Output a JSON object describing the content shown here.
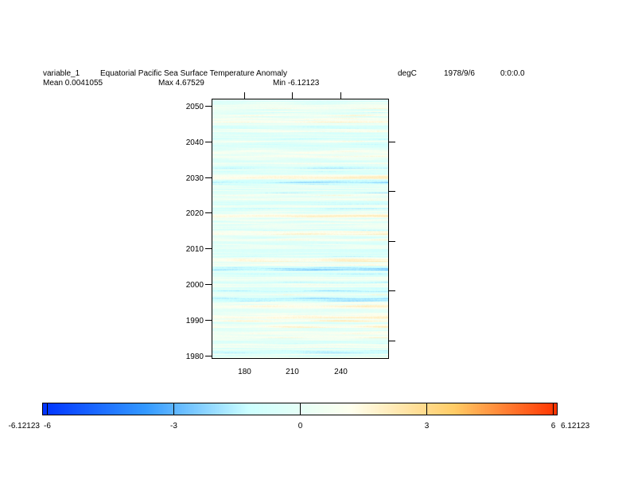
{
  "header": {
    "variable": "variable_1",
    "title": "Equatorial Pacific Sea Surface Temperature Anomaly",
    "units": "degC",
    "date": "1978/9/6",
    "time": "0:0:0.0",
    "mean": "Mean 0.0041055",
    "max": "Max 4.67529",
    "min": "Min -6.12123"
  },
  "chart_data": {
    "type": "heatmap",
    "title": "Equatorial Pacific Sea Surface Temperature Anomaly",
    "units": "degC",
    "xlim": [
      160,
      270
    ],
    "ylim": [
      1979,
      2052
    ],
    "x_ticks": [
      180,
      210,
      240
    ],
    "x_tick_labels": [
      "180",
      "210",
      "240"
    ],
    "y_ticks": [
      1980,
      1990,
      2000,
      2010,
      2020,
      2030,
      2040,
      2050
    ],
    "y_tick_labels": [
      "1980",
      "1990",
      "2000",
      "2010",
      "2020",
      "2030",
      "2040",
      "2050"
    ],
    "value_range": [
      -6.12123,
      6.12123
    ],
    "mean": 0.0041055,
    "max": 4.67529,
    "min": -6.12123,
    "pattern": "horizontal bands varying by time, weak variation with longitude",
    "colorbar": {
      "orientation": "horizontal",
      "min_label": "-6.12123",
      "max_label": "6.12123",
      "ticks": [
        -6,
        -3,
        0,
        3,
        6
      ],
      "tick_labels": [
        "-6",
        "-3",
        "0",
        "3",
        "6"
      ],
      "colors": [
        "#0033ff",
        "#3399ff",
        "#ccffff",
        "#ffffee",
        "#ffcc66",
        "#ff3300"
      ]
    }
  }
}
